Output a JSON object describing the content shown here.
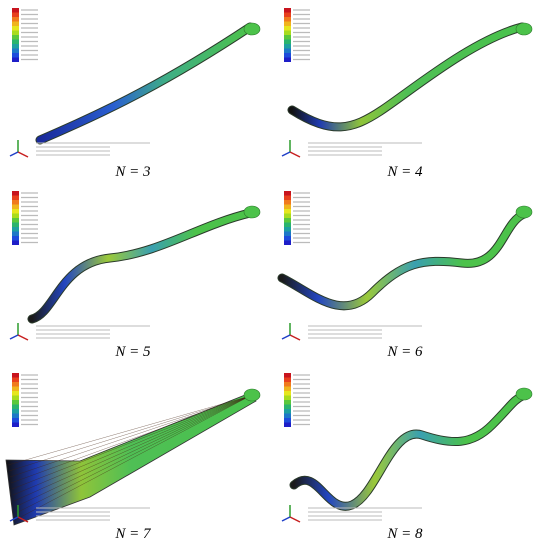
{
  "figure": {
    "panels": [
      {
        "caption": "N = 3"
      },
      {
        "caption": "N = 4"
      },
      {
        "caption": "N = 5"
      },
      {
        "caption": "N = 6"
      },
      {
        "caption": "N = 7"
      },
      {
        "caption": "N = 8"
      }
    ]
  }
}
